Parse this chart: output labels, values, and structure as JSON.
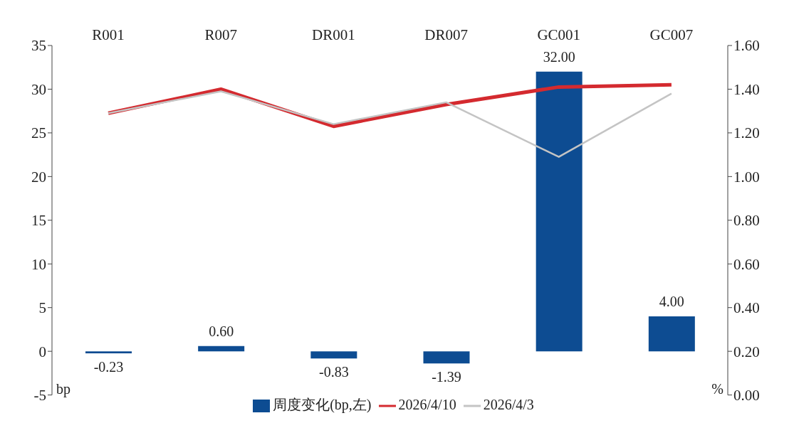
{
  "chart_data": {
    "type": "bar",
    "categories": [
      "R001",
      "R007",
      "DR001",
      "DR007",
      "GC001",
      "GC007"
    ],
    "series": [
      {
        "name": "周度变化(bp,左)",
        "color": "#0d4c92",
        "values": [
          -0.23,
          0.6,
          -0.83,
          -1.39,
          32,
          4
        ],
        "value_labels": [
          "-0.23",
          "0.60",
          "-0.83",
          "-1.39",
          "32.00",
          "4.00"
        ]
      },
      {
        "name": "2026/4/10",
        "type": "line",
        "axis": "y2",
        "color": "#d42a2f",
        "values": [
          1.29,
          1.4,
          1.23,
          1.33,
          1.41,
          1.42
        ]
      },
      {
        "name": "2026/4/3",
        "type": "line",
        "axis": "y2",
        "color": "#c4c4c4",
        "values": [
          1.29,
          1.39,
          1.24,
          1.34,
          1.09,
          1.38
        ]
      }
    ],
    "ylabel": "bp",
    "y2label": "%",
    "ylim": [
      -5,
      35
    ],
    "yticks": [
      -5,
      0,
      5,
      10,
      15,
      20,
      25,
      30,
      35
    ],
    "y2lim": [
      0,
      1.6
    ],
    "y2ticks": [
      {
        "value": 0,
        "label": "0.00"
      },
      {
        "value": 0.2,
        "label": "0.20"
      },
      {
        "value": 0.4,
        "label": "0.40"
      },
      {
        "value": 0.6,
        "label": "0.60"
      },
      {
        "value": 0.8,
        "label": "0.80"
      },
      {
        "value": 1.0,
        "label": "1.00"
      },
      {
        "value": 1.2,
        "label": "1.20"
      },
      {
        "value": 1.4,
        "label": "1.40"
      },
      {
        "value": 1.6,
        "label": "1.60"
      }
    ],
    "grid": false,
    "legend": "bottom",
    "marker": "none",
    "line_style": "solid"
  }
}
